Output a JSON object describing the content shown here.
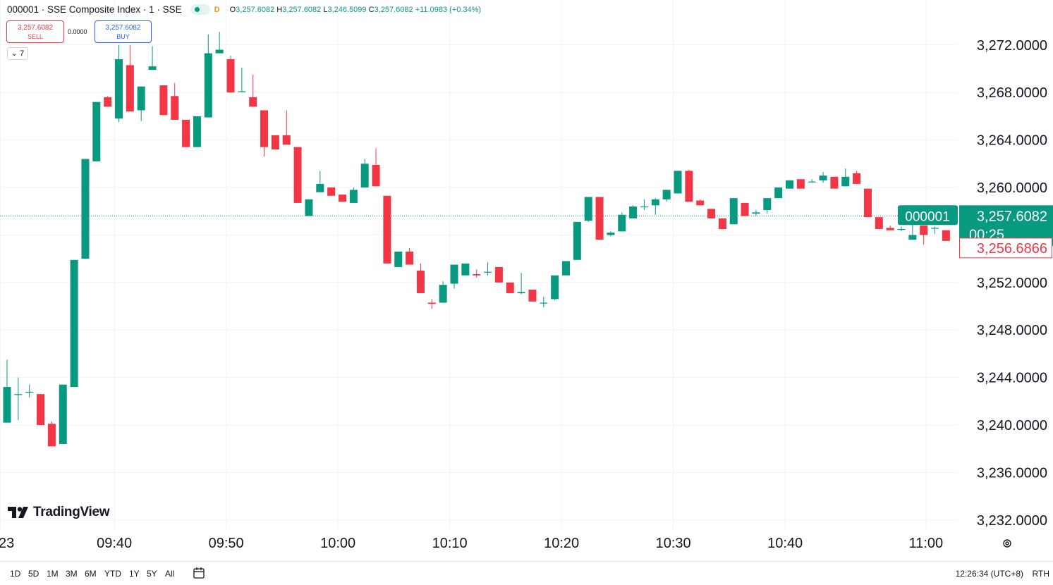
{
  "legend": {
    "symbol": "000001 · SSE Composite Index · 1 · SSE",
    "d_tag": "D",
    "o_label": "O",
    "o_value": "3,257.6082",
    "h_label": "H",
    "h_value": "3,257.6082",
    "l_label": "L",
    "l_value": "3,246.5099",
    "c_label": "C",
    "c_value": "3,257.6082",
    "change": "+11.0983 (+0.34%)"
  },
  "trade": {
    "sell_price": "3,257.6082",
    "sell_label": "SELL",
    "spread": "0.0000",
    "buy_price": "3,257.6082",
    "buy_label": "BUY",
    "collapse_label": "7"
  },
  "brand": {
    "name": "TradingView"
  },
  "price_scale": {
    "ticks": [
      "3,272.0000",
      "3,268.0000",
      "3,264.0000",
      "3,260.0000",
      "3,252.0000",
      "3,248.0000",
      "3,244.0000",
      "3,240.0000",
      "3,236.0000",
      "3,232.0000"
    ],
    "last_symbol": "000001",
    "last_price": "3,257.6082",
    "countdown": "00:25",
    "ref_price": "3,256.6866"
  },
  "time_scale": {
    "labels": [
      "23",
      "09:40",
      "09:50",
      "10:00",
      "10:10",
      "10:20",
      "10:30",
      "10:40",
      "11:00"
    ]
  },
  "bottom": {
    "ranges": [
      "1D",
      "5D",
      "1M",
      "3M",
      "6M",
      "YTD",
      "1Y",
      "5Y",
      "All"
    ],
    "clock": "12:26:34 (UTC+8)",
    "rth": "RTH"
  },
  "colors": {
    "up": "#089981",
    "down": "#f23645",
    "grid": "#f2f3f5",
    "text": "#131722"
  },
  "chart_data": {
    "type": "candlestick",
    "symbol": "000001",
    "ylim": [
      3230.2,
      3274.7
    ],
    "grid": true,
    "last_price": 3257.6082,
    "ref_price": 3256.6866,
    "candles": [
      {
        "t": "09:31",
        "o": 3240.2,
        "h": 3245.5,
        "l": 3240.2,
        "c": 3243.2
      },
      {
        "t": "09:32",
        "o": 3242.6,
        "h": 3244.0,
        "l": 3240.4,
        "c": 3242.6
      },
      {
        "t": "09:33",
        "o": 3242.8,
        "h": 3243.4,
        "l": 3242.3,
        "c": 3242.8
      },
      {
        "t": "09:34",
        "o": 3242.6,
        "h": 3242.6,
        "l": 3240.0,
        "c": 3240.0
      },
      {
        "t": "09:35",
        "o": 3240.1,
        "h": 3240.3,
        "l": 3238.2,
        "c": 3238.2
      },
      {
        "t": "09:36",
        "o": 3238.4,
        "h": 3243.4,
        "l": 3238.4,
        "c": 3243.4
      },
      {
        "t": "09:37",
        "o": 3243.2,
        "h": 3253.9,
        "l": 3243.2,
        "c": 3253.9
      },
      {
        "t": "09:38",
        "o": 3254.0,
        "h": 3262.4,
        "l": 3254.0,
        "c": 3262.4
      },
      {
        "t": "09:39",
        "o": 3262.2,
        "h": 3267.2,
        "l": 3262.2,
        "c": 3267.2
      },
      {
        "t": "09:40",
        "o": 3267.6,
        "h": 3267.7,
        "l": 3266.8,
        "c": 3266.8
      },
      {
        "t": "09:41",
        "o": 3265.8,
        "h": 3272.0,
        "l": 3265.5,
        "c": 3270.8
      },
      {
        "t": "09:42",
        "o": 3270.3,
        "h": 3272.0,
        "l": 3266.4,
        "c": 3266.4
      },
      {
        "t": "09:43",
        "o": 3266.5,
        "h": 3268.5,
        "l": 3265.6,
        "c": 3268.5
      },
      {
        "t": "09:44",
        "o": 3269.9,
        "h": 3271.9,
        "l": 3269.9,
        "c": 3270.2
      },
      {
        "t": "09:45",
        "o": 3268.6,
        "h": 3268.6,
        "l": 3266.1,
        "c": 3266.1
      },
      {
        "t": "09:46",
        "o": 3267.7,
        "h": 3268.8,
        "l": 3265.7,
        "c": 3265.7
      },
      {
        "t": "09:47",
        "o": 3265.7,
        "h": 3265.7,
        "l": 3263.4,
        "c": 3263.4
      },
      {
        "t": "09:48",
        "o": 3263.4,
        "h": 3266.0,
        "l": 3263.4,
        "c": 3266.0
      },
      {
        "t": "09:49",
        "o": 3265.9,
        "h": 3272.9,
        "l": 3265.9,
        "c": 3271.3
      },
      {
        "t": "09:50",
        "o": 3271.3,
        "h": 3273.1,
        "l": 3271.3,
        "c": 3271.6
      },
      {
        "t": "09:51",
        "o": 3270.8,
        "h": 3271.1,
        "l": 3268.0,
        "c": 3268.0
      },
      {
        "t": "09:52",
        "o": 3268.1,
        "h": 3270.1,
        "l": 3268.0,
        "c": 3268.1
      },
      {
        "t": "09:53",
        "o": 3267.6,
        "h": 3269.5,
        "l": 3266.8,
        "c": 3266.8
      },
      {
        "t": "09:54",
        "o": 3266.5,
        "h": 3266.5,
        "l": 3262.6,
        "c": 3263.4
      },
      {
        "t": "09:55",
        "o": 3264.4,
        "h": 3264.4,
        "l": 3263.2,
        "c": 3263.2
      },
      {
        "t": "09:56",
        "o": 3264.4,
        "h": 3266.5,
        "l": 3263.6,
        "c": 3263.6
      },
      {
        "t": "09:57",
        "o": 3263.4,
        "h": 3263.4,
        "l": 3258.7,
        "c": 3258.7
      },
      {
        "t": "09:58",
        "o": 3257.6,
        "h": 3259.0,
        "l": 3257.6,
        "c": 3259.0
      },
      {
        "t": "09:59",
        "o": 3259.6,
        "h": 3261.4,
        "l": 3259.6,
        "c": 3260.3
      },
      {
        "t": "10:00",
        "o": 3260.0,
        "h": 3260.0,
        "l": 3259.3,
        "c": 3259.3
      },
      {
        "t": "10:01",
        "o": 3259.4,
        "h": 3259.4,
        "l": 3258.8,
        "c": 3258.8
      },
      {
        "t": "10:02",
        "o": 3258.7,
        "h": 3260.0,
        "l": 3258.7,
        "c": 3259.8
      },
      {
        "t": "10:03",
        "o": 3260.0,
        "h": 3262.4,
        "l": 3260.0,
        "c": 3262.0
      },
      {
        "t": "10:04",
        "o": 3261.9,
        "h": 3263.3,
        "l": 3260.1,
        "c": 3260.1
      },
      {
        "t": "10:05",
        "o": 3259.3,
        "h": 3259.3,
        "l": 3253.6,
        "c": 3253.6
      },
      {
        "t": "10:06",
        "o": 3253.3,
        "h": 3254.6,
        "l": 3253.3,
        "c": 3254.6
      },
      {
        "t": "10:07",
        "o": 3254.6,
        "h": 3254.9,
        "l": 3253.5,
        "c": 3253.5
      },
      {
        "t": "10:08",
        "o": 3253.0,
        "h": 3253.6,
        "l": 3251.1,
        "c": 3251.1
      },
      {
        "t": "10:09",
        "o": 3250.3,
        "h": 3250.6,
        "l": 3249.8,
        "c": 3250.2
      },
      {
        "t": "10:10",
        "o": 3250.3,
        "h": 3252.1,
        "l": 3250.3,
        "c": 3251.8
      },
      {
        "t": "10:11",
        "o": 3251.9,
        "h": 3253.5,
        "l": 3251.5,
        "c": 3253.5
      },
      {
        "t": "10:12",
        "o": 3252.6,
        "h": 3253.6,
        "l": 3252.6,
        "c": 3253.6
      },
      {
        "t": "10:13",
        "o": 3252.7,
        "h": 3253.1,
        "l": 3252.4,
        "c": 3252.6
      },
      {
        "t": "10:14",
        "o": 3252.9,
        "h": 3253.7,
        "l": 3252.6,
        "c": 3252.9
      },
      {
        "t": "10:15",
        "o": 3253.3,
        "h": 3253.3,
        "l": 3252.0,
        "c": 3252.0
      },
      {
        "t": "10:16",
        "o": 3252.0,
        "h": 3252.0,
        "l": 3251.1,
        "c": 3251.1
      },
      {
        "t": "10:17",
        "o": 3251.1,
        "h": 3252.8,
        "l": 3251.0,
        "c": 3251.2
      },
      {
        "t": "10:18",
        "o": 3251.4,
        "h": 3251.4,
        "l": 3250.4,
        "c": 3250.4
      },
      {
        "t": "10:19",
        "o": 3250.3,
        "h": 3250.8,
        "l": 3249.9,
        "c": 3250.3
      },
      {
        "t": "10:20",
        "o": 3250.6,
        "h": 3252.6,
        "l": 3250.5,
        "c": 3252.6
      },
      {
        "t": "10:21",
        "o": 3252.6,
        "h": 3253.8,
        "l": 3252.6,
        "c": 3253.8
      },
      {
        "t": "10:22",
        "o": 3253.9,
        "h": 3257.1,
        "l": 3253.9,
        "c": 3257.1
      },
      {
        "t": "10:23",
        "o": 3257.2,
        "h": 3259.2,
        "l": 3257.1,
        "c": 3259.2
      },
      {
        "t": "10:24",
        "o": 3259.2,
        "h": 3259.2,
        "l": 3255.6,
        "c": 3255.6
      },
      {
        "t": "10:25",
        "o": 3256.0,
        "h": 3256.3,
        "l": 3255.9,
        "c": 3256.2
      },
      {
        "t": "10:26",
        "o": 3256.3,
        "h": 3257.9,
        "l": 3256.3,
        "c": 3257.7
      },
      {
        "t": "10:27",
        "o": 3257.4,
        "h": 3258.5,
        "l": 3257.4,
        "c": 3258.4
      },
      {
        "t": "10:28",
        "o": 3258.4,
        "h": 3259.0,
        "l": 3258.1,
        "c": 3258.4
      },
      {
        "t": "10:29",
        "o": 3258.5,
        "h": 3259.1,
        "l": 3257.7,
        "c": 3259.0
      },
      {
        "t": "10:30",
        "o": 3259.0,
        "h": 3259.8,
        "l": 3258.8,
        "c": 3259.8
      },
      {
        "t": "10:31",
        "o": 3259.5,
        "h": 3261.4,
        "l": 3259.5,
        "c": 3261.4
      },
      {
        "t": "10:32",
        "o": 3261.4,
        "h": 3261.5,
        "l": 3258.8,
        "c": 3258.8
      },
      {
        "t": "10:33",
        "o": 3258.9,
        "h": 3259.0,
        "l": 3258.5,
        "c": 3258.5
      },
      {
        "t": "10:34",
        "o": 3258.2,
        "h": 3258.2,
        "l": 3257.4,
        "c": 3257.4
      },
      {
        "t": "10:35",
        "o": 3257.4,
        "h": 3257.4,
        "l": 3256.5,
        "c": 3256.5
      },
      {
        "t": "10:36",
        "o": 3256.9,
        "h": 3259.1,
        "l": 3256.9,
        "c": 3259.1
      },
      {
        "t": "10:37",
        "o": 3258.7,
        "h": 3258.7,
        "l": 3257.6,
        "c": 3257.6
      },
      {
        "t": "10:38",
        "o": 3257.8,
        "h": 3258.1,
        "l": 3257.6,
        "c": 3257.9
      },
      {
        "t": "10:39",
        "o": 3258.1,
        "h": 3259.1,
        "l": 3257.8,
        "c": 3259.1
      },
      {
        "t": "10:40",
        "o": 3259.1,
        "h": 3260.0,
        "l": 3259.1,
        "c": 3260.0
      },
      {
        "t": "10:41",
        "o": 3259.9,
        "h": 3260.6,
        "l": 3259.9,
        "c": 3260.6
      },
      {
        "t": "10:42",
        "o": 3260.7,
        "h": 3260.7,
        "l": 3259.9,
        "c": 3259.9
      },
      {
        "t": "10:43",
        "o": 3260.5,
        "h": 3260.7,
        "l": 3260.4,
        "c": 3260.5
      },
      {
        "t": "10:44",
        "o": 3260.6,
        "h": 3261.3,
        "l": 3260.4,
        "c": 3261.0
      },
      {
        "t": "10:45",
        "o": 3260.9,
        "h": 3260.9,
        "l": 3259.9,
        "c": 3259.9
      },
      {
        "t": "10:46",
        "o": 3260.1,
        "h": 3261.6,
        "l": 3260.1,
        "c": 3260.9
      },
      {
        "t": "10:47",
        "o": 3261.2,
        "h": 3261.4,
        "l": 3260.3,
        "c": 3260.3
      },
      {
        "t": "10:48",
        "o": 3259.9,
        "h": 3259.9,
        "l": 3257.5,
        "c": 3257.5
      },
      {
        "t": "10:49",
        "o": 3257.5,
        "h": 3257.5,
        "l": 3256.5,
        "c": 3256.5
      },
      {
        "t": "10:50",
        "o": 3256.6,
        "h": 3256.8,
        "l": 3256.4,
        "c": 3256.4
      },
      {
        "t": "10:51",
        "o": 3256.5,
        "h": 3256.7,
        "l": 3256.3,
        "c": 3256.5
      },
      {
        "t": "10:52",
        "o": 3255.6,
        "h": 3257.0,
        "l": 3255.6,
        "c": 3256.0
      },
      {
        "t": "10:53",
        "o": 3256.8,
        "h": 3256.8,
        "l": 3255.2,
        "c": 3256.0
      },
      {
        "t": "10:54",
        "o": 3256.6,
        "h": 3256.7,
        "l": 3256.1,
        "c": 3256.6
      },
      {
        "t": "10:55",
        "o": 3256.4,
        "h": 3256.4,
        "l": 3255.5,
        "c": 3255.5
      }
    ]
  }
}
